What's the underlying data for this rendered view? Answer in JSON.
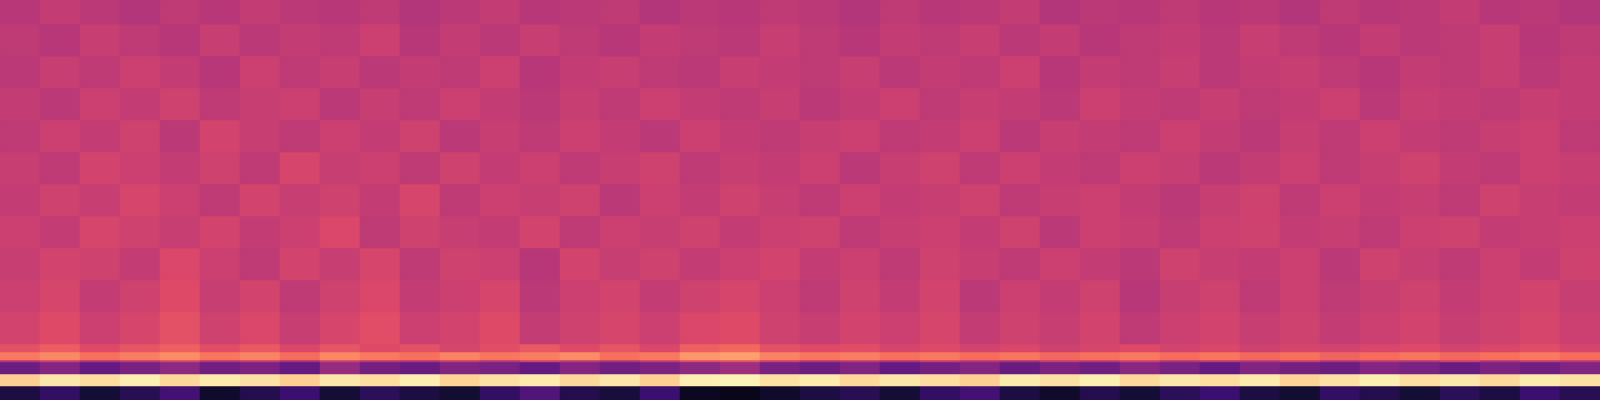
{
  "chart_data": {
    "type": "heatmap",
    "color": "magma",
    "tick_labels": false,
    "ylim": [
      0,
      50
    ],
    "y_bins": [
      0,
      1.75,
      3.25,
      4.75,
      5,
      6,
      7,
      11,
      15,
      19,
      23,
      27,
      31,
      35,
      39,
      43,
      47,
      50
    ],
    "cells": [
      [
        0.12,
        0.18,
        0.1,
        0.15,
        0.22,
        0.08,
        0.14,
        0.2,
        0.1,
        0.16,
        0.12,
        0.09,
        0.18,
        0.25,
        0.14,
        0.11,
        0.2,
        0.06,
        0.04,
        0.08,
        0.12,
        0.15,
        0.1,
        0.18,
        0.22,
        0.12,
        0.08,
        0.14,
        0.1,
        0.16,
        0.2,
        0.12,
        0.09,
        0.18,
        0.14,
        0.1,
        0.16,
        0.12,
        0.2,
        0.15
      ],
      [
        0.9,
        0.95,
        0.93,
        0.97,
        0.92,
        0.96,
        0.94,
        0.9,
        0.95,
        0.93,
        0.97,
        0.91,
        0.94,
        0.96,
        0.92,
        0.95,
        0.9,
        0.97,
        0.98,
        0.94,
        0.96,
        0.92,
        0.95,
        0.93,
        0.9,
        0.96,
        0.94,
        0.97,
        0.92,
        0.95,
        0.93,
        0.96,
        0.91,
        0.94,
        0.97,
        0.93,
        0.95,
        0.92,
        0.96,
        0.94
      ],
      [
        0.32,
        0.38,
        0.3,
        0.35,
        0.4,
        0.33,
        0.36,
        0.3,
        0.42,
        0.34,
        0.31,
        0.37,
        0.35,
        0.3,
        0.38,
        0.33,
        0.36,
        0.4,
        0.44,
        0.35,
        0.32,
        0.37,
        0.3,
        0.34,
        0.38,
        0.31,
        0.36,
        0.33,
        0.39,
        0.35,
        0.3,
        0.37,
        0.34,
        0.32,
        0.38,
        0.35,
        0.31,
        0.36,
        0.33,
        0.37
      ],
      [
        0.5,
        0.55,
        0.48,
        0.52,
        0.58,
        0.5,
        0.53,
        0.47,
        0.55,
        0.51,
        0.49,
        0.54,
        0.5,
        0.56,
        0.52,
        0.48,
        0.53,
        0.6,
        0.62,
        0.55,
        0.5,
        0.52,
        0.48,
        0.54,
        0.5,
        0.47,
        0.53,
        0.51,
        0.55,
        0.49,
        0.52,
        0.5,
        0.54,
        0.48,
        0.52,
        0.5,
        0.55,
        0.49,
        0.53,
        0.51
      ],
      [
        0.72,
        0.75,
        0.7,
        0.73,
        0.76,
        0.71,
        0.74,
        0.69,
        0.75,
        0.72,
        0.7,
        0.74,
        0.71,
        0.73,
        0.76,
        0.7,
        0.72,
        0.78,
        0.8,
        0.74,
        0.71,
        0.73,
        0.7,
        0.72,
        0.69,
        0.71,
        0.68,
        0.7,
        0.72,
        0.69,
        0.71,
        0.68,
        0.7,
        0.67,
        0.69,
        0.71,
        0.68,
        0.7,
        0.72,
        0.69
      ],
      [
        0.62,
        0.65,
        0.6,
        0.63,
        0.66,
        0.61,
        0.64,
        0.59,
        0.63,
        0.6,
        0.62,
        0.58,
        0.61,
        0.64,
        0.6,
        0.63,
        0.59,
        0.66,
        0.68,
        0.62,
        0.6,
        0.61,
        0.58,
        0.6,
        0.57,
        0.59,
        0.56,
        0.58,
        0.6,
        0.57,
        0.59,
        0.56,
        0.58,
        0.57,
        0.59,
        0.6,
        0.57,
        0.59,
        0.61,
        0.58
      ],
      [
        0.57,
        0.6,
        0.55,
        0.58,
        0.62,
        0.56,
        0.59,
        0.54,
        0.58,
        0.61,
        0.55,
        0.57,
        0.6,
        0.53,
        0.56,
        0.58,
        0.55,
        0.59,
        0.6,
        0.56,
        0.54,
        0.57,
        0.55,
        0.58,
        0.53,
        0.56,
        0.54,
        0.57,
        0.52,
        0.55,
        0.57,
        0.54,
        0.56,
        0.53,
        0.55,
        0.57,
        0.54,
        0.56,
        0.58,
        0.55
      ],
      [
        0.55,
        0.58,
        0.53,
        0.56,
        0.6,
        0.54,
        0.57,
        0.52,
        0.56,
        0.59,
        0.53,
        0.55,
        0.58,
        0.51,
        0.55,
        0.57,
        0.53,
        0.56,
        0.58,
        0.55,
        0.52,
        0.56,
        0.53,
        0.57,
        0.51,
        0.55,
        0.53,
        0.56,
        0.5,
        0.54,
        0.56,
        0.52,
        0.55,
        0.52,
        0.54,
        0.56,
        0.53,
        0.55,
        0.57,
        0.54
      ],
      [
        0.54,
        0.57,
        0.56,
        0.53,
        0.59,
        0.55,
        0.52,
        0.57,
        0.54,
        0.58,
        0.52,
        0.56,
        0.55,
        0.5,
        0.57,
        0.54,
        0.56,
        0.53,
        0.55,
        0.57,
        0.53,
        0.55,
        0.52,
        0.56,
        0.54,
        0.52,
        0.55,
        0.53,
        0.51,
        0.56,
        0.54,
        0.53,
        0.55,
        0.51,
        0.56,
        0.54,
        0.52,
        0.55,
        0.53,
        0.56
      ],
      [
        0.55,
        0.53,
        0.58,
        0.56,
        0.54,
        0.57,
        0.53,
        0.55,
        0.59,
        0.52,
        0.56,
        0.54,
        0.53,
        0.57,
        0.52,
        0.55,
        0.54,
        0.56,
        0.53,
        0.55,
        0.56,
        0.52,
        0.54,
        0.55,
        0.53,
        0.56,
        0.51,
        0.55,
        0.54,
        0.52,
        0.55,
        0.56,
        0.53,
        0.54,
        0.52,
        0.55,
        0.56,
        0.53,
        0.54,
        0.55
      ],
      [
        0.53,
        0.56,
        0.54,
        0.58,
        0.55,
        0.52,
        0.57,
        0.54,
        0.56,
        0.53,
        0.58,
        0.52,
        0.55,
        0.54,
        0.56,
        0.51,
        0.55,
        0.53,
        0.56,
        0.54,
        0.52,
        0.55,
        0.53,
        0.54,
        0.56,
        0.52,
        0.54,
        0.55,
        0.53,
        0.51,
        0.54,
        0.56,
        0.52,
        0.55,
        0.53,
        0.54,
        0.52,
        0.56,
        0.54,
        0.53
      ],
      [
        0.54,
        0.52,
        0.57,
        0.55,
        0.53,
        0.56,
        0.52,
        0.58,
        0.54,
        0.55,
        0.52,
        0.56,
        0.53,
        0.55,
        0.52,
        0.54,
        0.56,
        0.52,
        0.54,
        0.53,
        0.55,
        0.51,
        0.54,
        0.56,
        0.52,
        0.55,
        0.53,
        0.52,
        0.55,
        0.54,
        0.51,
        0.53,
        0.55,
        0.52,
        0.54,
        0.56,
        0.53,
        0.52,
        0.55,
        0.54
      ],
      [
        0.52,
        0.55,
        0.53,
        0.56,
        0.51,
        0.57,
        0.54,
        0.52,
        0.55,
        0.53,
        0.56,
        0.51,
        0.54,
        0.52,
        0.55,
        0.53,
        0.51,
        0.55,
        0.53,
        0.52,
        0.54,
        0.55,
        0.52,
        0.53,
        0.55,
        0.51,
        0.54,
        0.53,
        0.52,
        0.55,
        0.53,
        0.51,
        0.54,
        0.52,
        0.55,
        0.53,
        0.52,
        0.54,
        0.55,
        0.52
      ],
      [
        0.53,
        0.51,
        0.55,
        0.53,
        0.56,
        0.52,
        0.54,
        0.55,
        0.51,
        0.54,
        0.52,
        0.55,
        0.53,
        0.51,
        0.54,
        0.52,
        0.55,
        0.53,
        0.52,
        0.54,
        0.51,
        0.53,
        0.55,
        0.52,
        0.54,
        0.53,
        0.51,
        0.55,
        0.53,
        0.52,
        0.54,
        0.52,
        0.53,
        0.55,
        0.51,
        0.54,
        0.53,
        0.52,
        0.54,
        0.53
      ],
      [
        0.51,
        0.54,
        0.52,
        0.55,
        0.53,
        0.5,
        0.55,
        0.52,
        0.54,
        0.51,
        0.53,
        0.52,
        0.55,
        0.5,
        0.53,
        0.54,
        0.52,
        0.51,
        0.54,
        0.53,
        0.52,
        0.54,
        0.51,
        0.53,
        0.52,
        0.55,
        0.5,
        0.53,
        0.52,
        0.54,
        0.51,
        0.53,
        0.54,
        0.52,
        0.5,
        0.53,
        0.52,
        0.54,
        0.51,
        0.53
      ],
      [
        0.52,
        0.5,
        0.54,
        0.52,
        0.5,
        0.54,
        0.51,
        0.53,
        0.52,
        0.55,
        0.5,
        0.53,
        0.51,
        0.54,
        0.52,
        0.5,
        0.53,
        0.52,
        0.51,
        0.54,
        0.52,
        0.5,
        0.53,
        0.52,
        0.54,
        0.51,
        0.53,
        0.5,
        0.52,
        0.53,
        0.51,
        0.54,
        0.52,
        0.5,
        0.53,
        0.51,
        0.52,
        0.54,
        0.5,
        0.52
      ],
      [
        0.5,
        0.53,
        0.51,
        0.49,
        0.52,
        0.5,
        0.53,
        0.51,
        0.5,
        0.52,
        0.49,
        0.51,
        0.53,
        0.5,
        0.51,
        0.52,
        0.49,
        0.51,
        0.5,
        0.52,
        0.51,
        0.49,
        0.52,
        0.5,
        0.51,
        0.53,
        0.49,
        0.51,
        0.5,
        0.52,
        0.5,
        0.51,
        0.49,
        0.52,
        0.5,
        0.51,
        0.53,
        0.5,
        0.51,
        0.49
      ]
    ]
  }
}
